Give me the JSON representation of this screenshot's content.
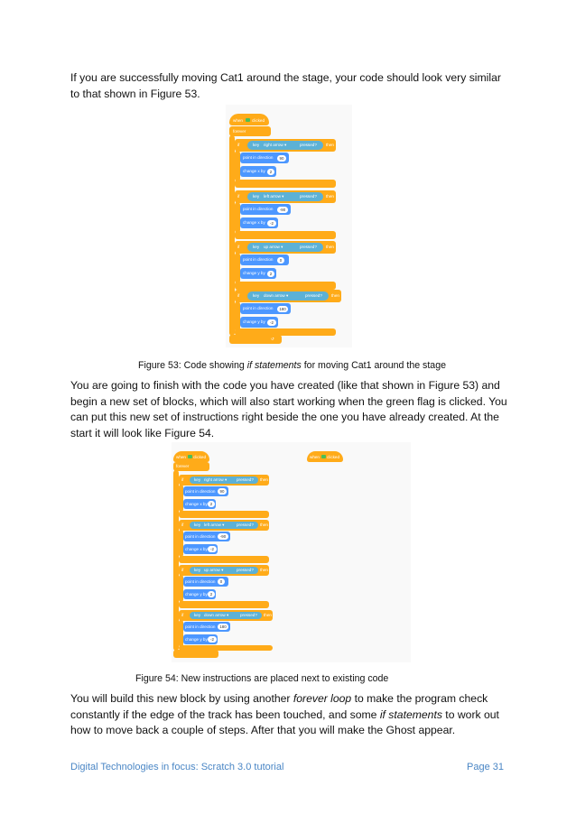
{
  "paragraphs": {
    "p1": "If you are successfully moving Cat1 around the stage, your code should look very similar to that shown in Figure 53.",
    "p2": "You are going to finish with the code you have created (like that shown in Figure 53) and begin a new set of blocks, which will also start working when the green flag is clicked. You can put this new set of instructions right beside the one you have already created. At the start it will look like Figure 54.",
    "p3_a": "You will build this new block by using another ",
    "p3_em1": "forever loop",
    "p3_b": " to make the program check constantly if the edge of the track has been touched, and some ",
    "p3_em2": "if statements",
    "p3_c": " to work out how to move back a couple of steps. After that you will make the Ghost appear."
  },
  "figure53": {
    "caption_a": "Figure 53: Code showing ",
    "caption_em": "if statements",
    "caption_b": " for moving Cat1 around the stage"
  },
  "figure54": {
    "caption": "Figure 54: New instructions are placed next to existing code"
  },
  "scratch": {
    "when": "when",
    "clicked": "clicked",
    "forever": "forever",
    "if": "if",
    "key": "key",
    "pressed": "pressed?",
    "then": "then",
    "point_in_direction": "point in direction",
    "change_x": "change x by",
    "change_y": "change y by",
    "right_arrow": "right arrow ▾",
    "left_arrow": "left arrow ▾",
    "up_arrow": "up arrow ▾",
    "down_arrow": "down arrow ▾",
    "dir_right": "90",
    "dir_left": "-90",
    "dir_up": "0",
    "dir_down": "180",
    "step_pos": "2",
    "step_neg": "-2"
  },
  "footer": {
    "left": "Digital Technologies in focus: Scratch 3.0 tutorial",
    "right": "Page 31"
  },
  "colors": {
    "control_orange": "#ffab19",
    "motion_blue": "#4c97ff",
    "sensing_cyan": "#5cb1d6",
    "footer_blue": "#4a86c5"
  }
}
